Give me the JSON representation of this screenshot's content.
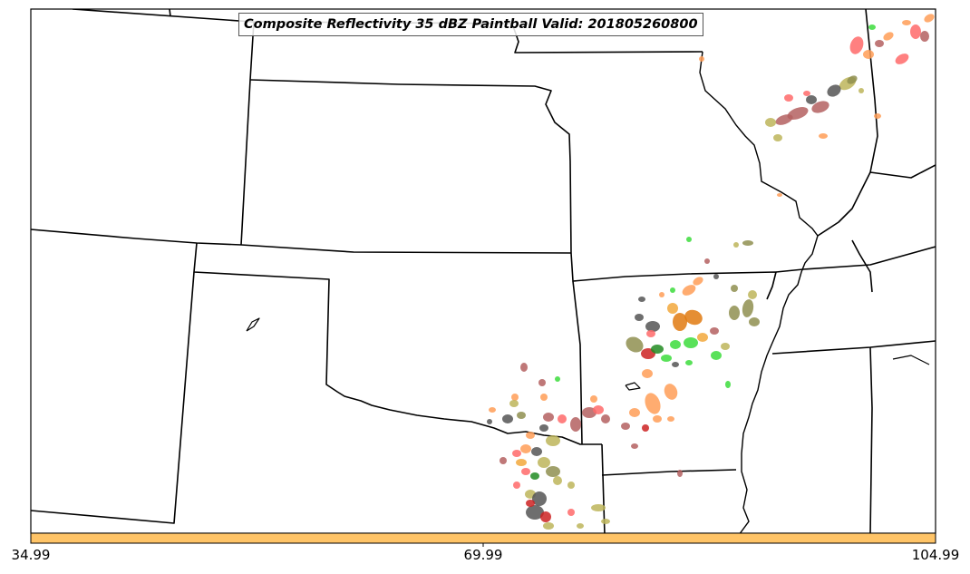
{
  "title": "Composite Reflectivity 35 dBZ Paintball Valid: 201805260800",
  "colorbar": {
    "color": "#FFC467",
    "ticks": [
      "34.99",
      "69.99",
      "104.99"
    ]
  },
  "member_colors": [
    "#FF6A6A",
    "#B46060",
    "#555555",
    "#BDB55A",
    "#8F8F50",
    "#FF9E57",
    "#F2A83C",
    "#3CDC3C",
    "#228B22",
    "#CC2222",
    "#E07A10",
    "#7A7A20"
  ]
}
